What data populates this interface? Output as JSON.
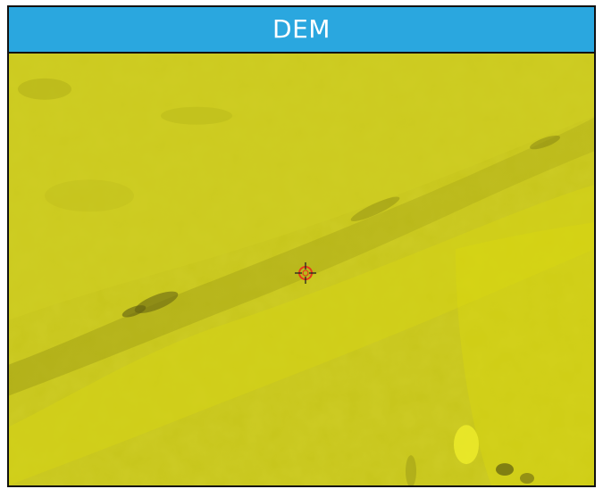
{
  "panel": {
    "title": "DEM",
    "title_bar_color": "#2aa7df",
    "border_color": "#111111"
  },
  "map": {
    "layer": "DEM",
    "base_color": "#c9c71a",
    "dark_color": "#8f8d12",
    "light_color": "#dddd10"
  },
  "marker": {
    "icon": "crosshair-target-icon",
    "ring_color": "#e53a1c",
    "cross_color": "#222222"
  }
}
